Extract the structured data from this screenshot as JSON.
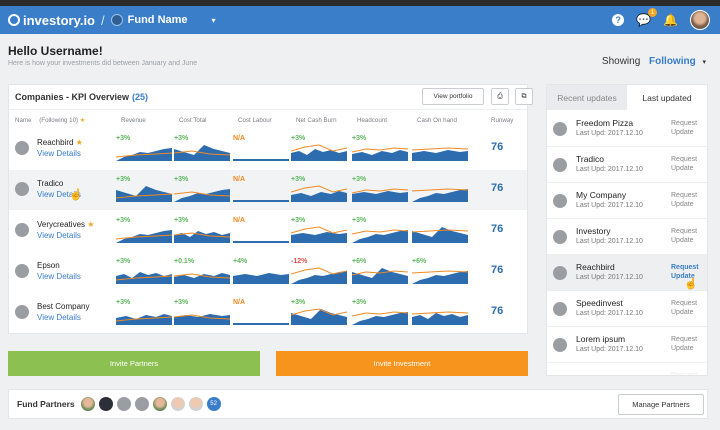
{
  "topbar": {
    "logo": "investory.io",
    "slash": "/",
    "fund_name": "Fund Name",
    "caret": "▾",
    "help_icon": "?",
    "chat_icon": "💬",
    "chat_badge": "1",
    "bell_icon": "🔔"
  },
  "header": {
    "greeting": "Hello Username!",
    "subtitle": "Here is how your investments did between January and June",
    "showing_label": "Showing",
    "showing_value": "Following",
    "showing_caret": "▾"
  },
  "kpi": {
    "title": "Companies - KPI Overview",
    "count": "(25)",
    "view_portfolio": "View portfolio",
    "print_icon": "⎙",
    "export_icon": "⧉",
    "name_header": "Name",
    "following": "(Following 10)",
    "star": "★",
    "columns": [
      "Revenue",
      "Cost Total",
      "Cost Labour",
      "Net Cash Burn",
      "Headcount",
      "Cash On hand",
      "Runway"
    ],
    "companies": [
      {
        "name": "Reachbird",
        "starred": true,
        "star": "★",
        "link": "View Details",
        "kpis": [
          "+3%",
          "+3%",
          "N/A",
          "+3%",
          "+3%",
          ""
        ],
        "runway": "76",
        "highlight": false
      },
      {
        "name": "Tradico",
        "starred": false,
        "star": "",
        "link": "View Details",
        "kpis": [
          "+3%",
          "+3%",
          "N/A",
          "+3%",
          "+3%",
          ""
        ],
        "runway": "76",
        "highlight": true
      },
      {
        "name": "Verycreatives",
        "starred": true,
        "star": "★",
        "link": "View Details",
        "kpis": [
          "+3%",
          "+3%",
          "N/A",
          "+3%",
          "+3%",
          ""
        ],
        "runway": "76",
        "highlight": false
      },
      {
        "name": "Epson",
        "starred": false,
        "star": "",
        "link": "View Details",
        "kpis": [
          "+3%",
          "+0.1%",
          "+4%",
          "-12%",
          "+6%",
          "+6%"
        ],
        "runway": "76",
        "highlight": false
      },
      {
        "name": "Best Company",
        "starred": false,
        "star": "",
        "link": "View Details",
        "kpis": [
          "+3%",
          "+3%",
          "N/A",
          "+3%",
          "+3%",
          ""
        ],
        "runway": "76",
        "highlight": false
      }
    ]
  },
  "actions": {
    "invite_partners": "Invite Partners",
    "invite_investment": "Invite Investment"
  },
  "updates": {
    "tab_recent": "Recent updates",
    "tab_last": "Last updated",
    "items": [
      {
        "name": "Freedom Pizza",
        "date": "Last Upd: 2017.12.10",
        "req1": "Request",
        "req2": "Update"
      },
      {
        "name": "Tradico",
        "date": "Last Upd: 2017.12.10",
        "req1": "Request",
        "req2": "Update"
      },
      {
        "name": "My Company",
        "date": "Last Upd: 2017.12.10",
        "req1": "Request",
        "req2": "Update"
      },
      {
        "name": "Investory",
        "date": "Last Upd: 2017.12.10",
        "req1": "Request",
        "req2": "Update"
      },
      {
        "name": "Reachbird",
        "date": "Last Upd: 2017.12.10",
        "req1": "Request",
        "req2": "Update"
      },
      {
        "name": "Speedinvest",
        "date": "Last Upd: 2017.12.10",
        "req1": "Request",
        "req2": "Update"
      },
      {
        "name": "Lorem ipsum",
        "date": "Last Upd: 2017.12.10",
        "req1": "Request",
        "req2": "Update"
      }
    ],
    "partial_req": "Request"
  },
  "footer": {
    "label": "Fund Partners",
    "count": "52",
    "manage": "Manage Partners"
  },
  "colors": {
    "brand": "#3a7dc9",
    "green": "#8cc152",
    "orange": "#f7941d",
    "chart_fill": "#2d6cae",
    "chart_line": "#f08a24"
  },
  "icons": {
    "pointer": "hand-pointer-icon"
  }
}
